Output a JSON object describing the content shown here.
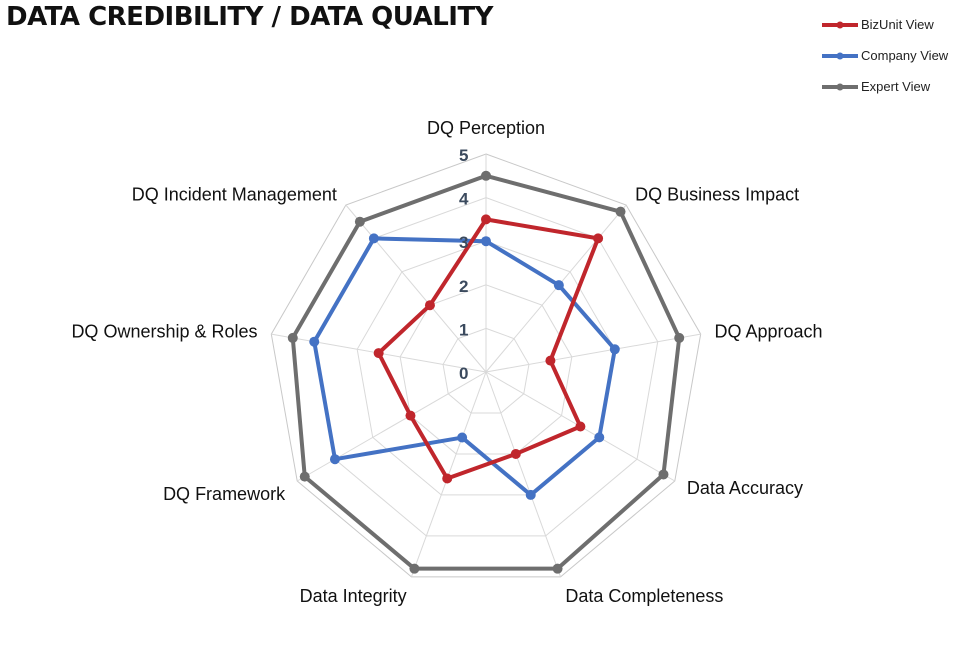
{
  "chart_data": {
    "type": "radar",
    "title": "DATA CREDIBILITY / DATA QUALITY",
    "categories": [
      "DQ Perception",
      "DQ Business Impact",
      "DQ Approach",
      "Data Accuracy",
      "Data Completeness",
      "Data Integrity",
      "DQ Framework",
      "DQ Ownership & Roles",
      "DQ Incident Management"
    ],
    "ticks": [
      "0",
      "1",
      "2",
      "3",
      "4",
      "5"
    ],
    "rlim": [
      0,
      5
    ],
    "grid": true,
    "legend_position": "top-right",
    "series": [
      {
        "name": "BizUnit View",
        "color": "#c0262c",
        "values": [
          3.5,
          4.0,
          1.5,
          2.5,
          2.0,
          2.6,
          2.0,
          2.5,
          2.0
        ]
      },
      {
        "name": "Company View",
        "color": "#4472c4",
        "values": [
          3.0,
          2.6,
          3.0,
          3.0,
          3.0,
          1.6,
          4.0,
          4.0,
          4.0
        ]
      },
      {
        "name": "Expert View",
        "color": "#6e6e6e",
        "values": [
          4.5,
          4.8,
          4.5,
          4.7,
          4.8,
          4.8,
          4.8,
          4.5,
          4.5
        ]
      }
    ]
  }
}
